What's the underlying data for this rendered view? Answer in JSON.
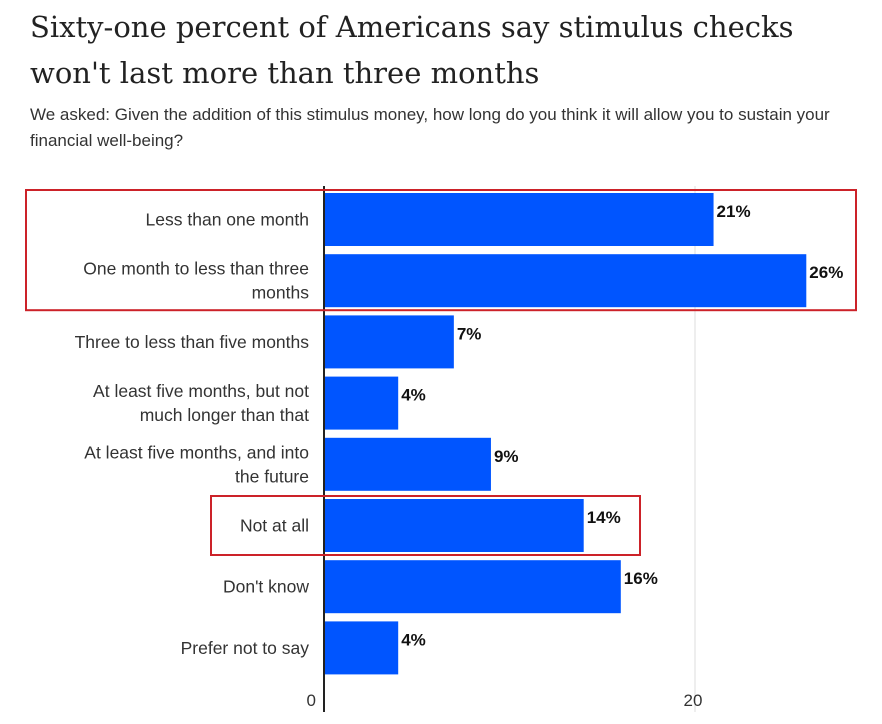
{
  "title": "Sixty-one percent of Americans say stimulus checks won't last more than three months",
  "subtitle": "We asked: Given the addition of this stimulus money, how long do you think it will allow you to sustain your financial well-being?",
  "colors": {
    "bar": "#0055ff",
    "highlight_box": "#cc2229",
    "axis": "#222222",
    "grid": "#dddddd"
  },
  "chart_data": {
    "type": "bar",
    "orientation": "horizontal",
    "categories": [
      [
        "Less than one month"
      ],
      [
        "One month to less than three",
        "months"
      ],
      [
        "Three to less than five months"
      ],
      [
        "At least five months, but not",
        "much longer than that"
      ],
      [
        "At least five months, and into",
        "the future"
      ],
      [
        "Not at all"
      ],
      [
        "Don't know"
      ],
      [
        "Prefer not to say"
      ]
    ],
    "values": [
      21,
      26,
      7,
      4,
      9,
      14,
      16,
      4
    ],
    "value_labels": [
      "21%",
      "26%",
      "7%",
      "4%",
      "9%",
      "14%",
      "16%",
      "4%"
    ],
    "xticks": [
      0,
      20
    ],
    "tick_labels": [
      "0",
      "20"
    ],
    "xlim": [
      0,
      27
    ],
    "grid": true,
    "highlighted_groups": [
      [
        0,
        1
      ],
      [
        5
      ]
    ]
  }
}
